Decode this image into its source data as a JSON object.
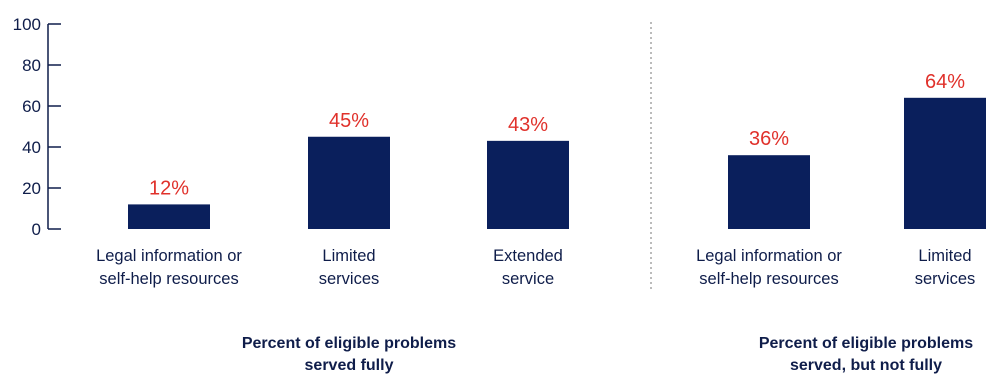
{
  "colors": {
    "bar": "#0a1f5c",
    "value_label": "#e0312b",
    "text": "#0f1d4a",
    "axis": "#0f1d4a",
    "divider": "#bbbbbb"
  },
  "chart_data": {
    "type": "bar",
    "ylim": [
      0,
      100
    ],
    "yticks": [
      "0",
      "20",
      "40",
      "60",
      "80",
      "100"
    ],
    "groups": [
      {
        "label_lines": [
          "Percent of eligible problems",
          "served fully"
        ],
        "bars": [
          {
            "label_lines": [
              "Legal information or",
              "self-help resources"
            ],
            "value": 12,
            "value_label": "12%"
          },
          {
            "label_lines": [
              "Limited",
              "services"
            ],
            "value": 45,
            "value_label": "45%"
          },
          {
            "label_lines": [
              "Extended",
              "service"
            ],
            "value": 43,
            "value_label": "43%"
          }
        ]
      },
      {
        "label_lines": [
          "Percent of eligible problems",
          "served, but not fully"
        ],
        "bars": [
          {
            "label_lines": [
              "Legal information or",
              "self-help resources"
            ],
            "value": 36,
            "value_label": "36%"
          },
          {
            "label_lines": [
              "Limited",
              "services"
            ],
            "value": 64,
            "value_label": "64%"
          }
        ]
      }
    ]
  }
}
